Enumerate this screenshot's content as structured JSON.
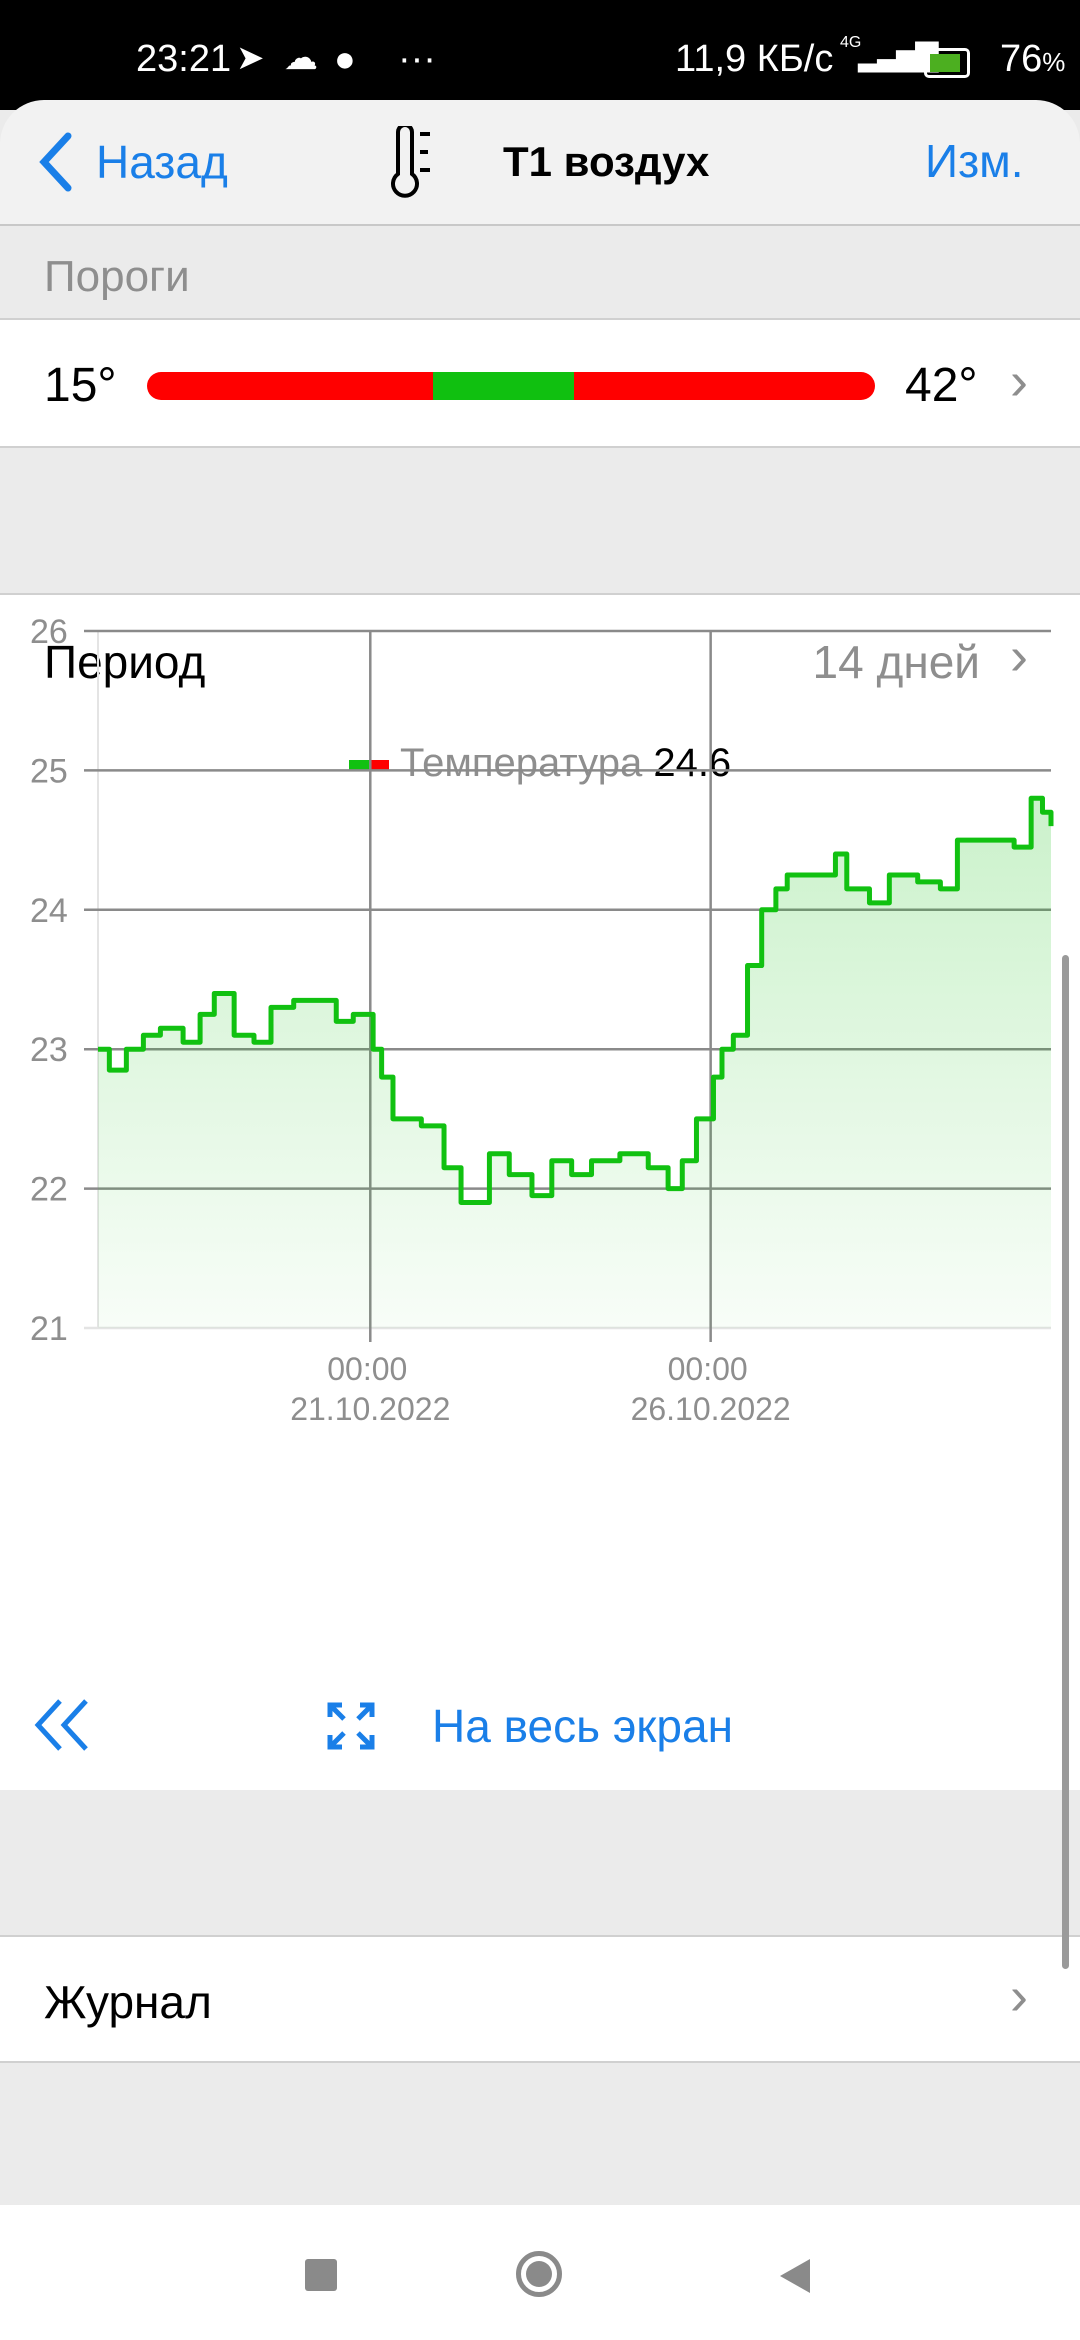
{
  "status_bar": {
    "time": "23:21",
    "net_speed": "11,9 КБ/с",
    "network": "4G",
    "battery": "76",
    "battery_unit": "%",
    "more": "···"
  },
  "header": {
    "back_label": "Назад",
    "title": "T1 воздух",
    "edit_label": "Изм.",
    "icon": "thermometer-icon"
  },
  "thresholds": {
    "section_label": "Пороги",
    "min": "15°",
    "max": "42°",
    "green_range_fraction": [
      0.393,
      0.587
    ],
    "colors": {
      "out": "#ff0000",
      "in": "#10c010"
    }
  },
  "period": {
    "label": "Период",
    "value": "14 дней"
  },
  "chart_data": {
    "type": "line",
    "legend": {
      "name": "Температура",
      "value": "24.6",
      "placement": "top-center"
    },
    "ylim": [
      21,
      26
    ],
    "yticks": [
      "21",
      "22",
      "23",
      "24",
      "25",
      "26"
    ],
    "xlim": [
      "2022-10-17T00:00",
      "2022-10-31T00:00"
    ],
    "xticks": [
      {
        "x": "2022-10-21T00:00",
        "time": "00:00",
        "date": "21.10.2022"
      },
      {
        "x": "2022-10-26T00:00",
        "time": "00:00",
        "date": "26.10.2022"
      }
    ],
    "grid": true,
    "color": "#11c111",
    "series": [
      {
        "points": [
          [
            "2022-10-17T00:00",
            23.0
          ],
          [
            "2022-10-17T04:00",
            22.85
          ],
          [
            "2022-10-17T10:00",
            23.0
          ],
          [
            "2022-10-17T16:00",
            23.1
          ],
          [
            "2022-10-17T22:00",
            23.15
          ],
          [
            "2022-10-18T06:00",
            23.05
          ],
          [
            "2022-10-18T12:00",
            23.25
          ],
          [
            "2022-10-18T17:00",
            23.4
          ],
          [
            "2022-10-19T00:00",
            23.1
          ],
          [
            "2022-10-19T07:00",
            23.05
          ],
          [
            "2022-10-19T13:00",
            23.3
          ],
          [
            "2022-10-19T21:00",
            23.35
          ],
          [
            "2022-10-20T05:00",
            23.35
          ],
          [
            "2022-10-20T12:00",
            23.2
          ],
          [
            "2022-10-20T18:00",
            23.25
          ],
          [
            "2022-10-21T01:00",
            23.0
          ],
          [
            "2022-10-21T04:00",
            22.8
          ],
          [
            "2022-10-21T08:00",
            22.5
          ],
          [
            "2022-10-21T18:00",
            22.45
          ],
          [
            "2022-10-22T02:00",
            22.15
          ],
          [
            "2022-10-22T08:00",
            21.9
          ],
          [
            "2022-10-22T18:00",
            22.25
          ],
          [
            "2022-10-23T01:00",
            22.1
          ],
          [
            "2022-10-23T09:00",
            21.95
          ],
          [
            "2022-10-23T16:00",
            22.2
          ],
          [
            "2022-10-23T23:00",
            22.1
          ],
          [
            "2022-10-24T06:00",
            22.2
          ],
          [
            "2022-10-24T16:00",
            22.25
          ],
          [
            "2022-10-25T02:00",
            22.15
          ],
          [
            "2022-10-25T09:00",
            22.0
          ],
          [
            "2022-10-25T14:00",
            22.2
          ],
          [
            "2022-10-25T19:00",
            22.5
          ],
          [
            "2022-10-26T01:00",
            22.8
          ],
          [
            "2022-10-26T04:00",
            23.0
          ],
          [
            "2022-10-26T08:00",
            23.1
          ],
          [
            "2022-10-26T13:00",
            23.6
          ],
          [
            "2022-10-26T18:00",
            24.0
          ],
          [
            "2022-10-26T23:00",
            24.15
          ],
          [
            "2022-10-27T03:00",
            24.25
          ],
          [
            "2022-10-27T12:00",
            24.25
          ],
          [
            "2022-10-27T20:00",
            24.4
          ],
          [
            "2022-10-28T00:00",
            24.15
          ],
          [
            "2022-10-28T08:00",
            24.05
          ],
          [
            "2022-10-28T15:00",
            24.25
          ],
          [
            "2022-10-29T01:00",
            24.2
          ],
          [
            "2022-10-29T09:00",
            24.15
          ],
          [
            "2022-10-29T15:00",
            24.5
          ],
          [
            "2022-10-30T04:00",
            24.5
          ],
          [
            "2022-10-30T11:00",
            24.45
          ],
          [
            "2022-10-30T17:00",
            24.8
          ],
          [
            "2022-10-30T21:00",
            24.7
          ],
          [
            "2022-10-31T00:00",
            24.6
          ]
        ]
      }
    ]
  },
  "chart_controls": {
    "back_icon": "double-chevron-left-icon",
    "fullscreen_icon": "expand-icon",
    "fullscreen_label": "На весь экран"
  },
  "journal": {
    "label": "Журнал"
  },
  "accent_color": "#1a7fe8"
}
